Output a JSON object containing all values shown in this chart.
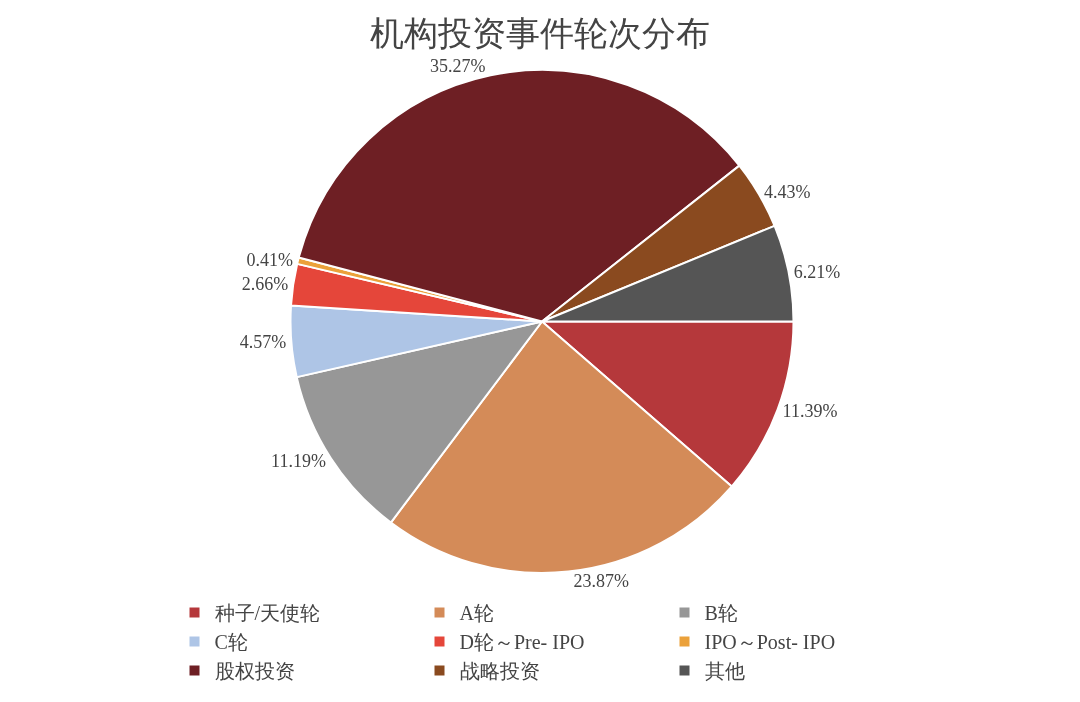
{
  "chart_data": {
    "type": "pie",
    "title": "机构投资事件轮次分布",
    "categories": [
      "种子/天使轮",
      "A轮",
      "B轮",
      "C轮",
      "D轮～Pre- IPO",
      "IPO～Post- IPO",
      "股权投资",
      "战略投资",
      "其他"
    ],
    "values": [
      11.39,
      23.87,
      11.19,
      4.57,
      2.66,
      0.41,
      35.27,
      4.43,
      6.21
    ],
    "value_labels": [
      "11.39%",
      "23.87%",
      "11.19%",
      "4.57%",
      "2.66%",
      "0.41%",
      "35.27%",
      "4.43%",
      "6.21%"
    ],
    "colors": [
      "#b5383b",
      "#d48b58",
      "#979797",
      "#aec5e6",
      "#e5463a",
      "#eba13a",
      "#6e1f24",
      "#8a4a1f",
      "#555555"
    ],
    "legend": "bottom"
  }
}
